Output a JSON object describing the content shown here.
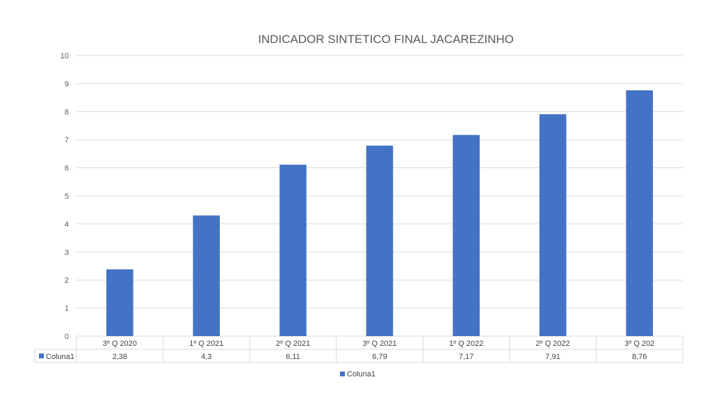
{
  "chart_data": {
    "type": "bar",
    "title": "INDICADOR SINTETICO FINAL JACAREZINHO",
    "categories": [
      "3º Q 2020",
      "1º Q 2021",
      "2º Q 2021",
      "3º Q 2021",
      "1º Q 2022",
      "2º Q 2022",
      "3º Q 202"
    ],
    "series": [
      {
        "name": "Coluna1",
        "values": [
          2.38,
          4.3,
          6.11,
          6.79,
          7.17,
          7.91,
          8.76
        ],
        "labels": [
          "2,38",
          "4,3",
          "6,11",
          "6,79",
          "7,17",
          "7,91",
          "8,76"
        ],
        "color": "#4472C4"
      }
    ],
    "ylim": [
      0,
      10
    ],
    "yticks": [
      "0",
      "1",
      "2",
      "3",
      "4",
      "5",
      "6",
      "7",
      "8",
      "9",
      "10"
    ],
    "grid": true,
    "data_table": true,
    "legend": {
      "position": "bottom",
      "entries": [
        "Coluna1"
      ]
    }
  }
}
